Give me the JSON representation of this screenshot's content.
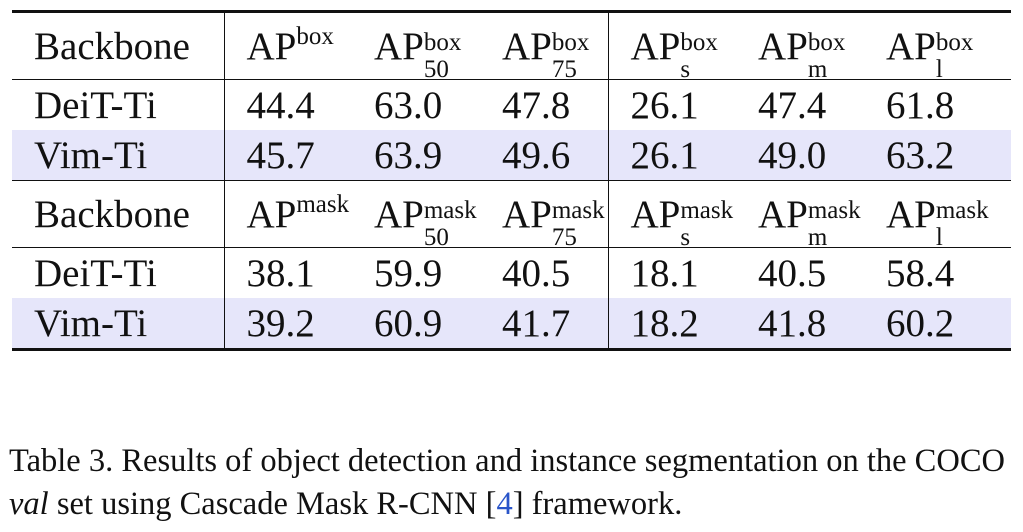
{
  "tables": [
    {
      "header": {
        "col0": "Backbone",
        "cols": [
          {
            "base": "AP",
            "sup": "box",
            "sub": ""
          },
          {
            "base": "AP",
            "sup": "box",
            "sub": "50"
          },
          {
            "base": "AP",
            "sup": "box",
            "sub": "75"
          },
          {
            "base": "AP",
            "sup": "box",
            "sub": "s"
          },
          {
            "base": "AP",
            "sup": "box",
            "sub": "m"
          },
          {
            "base": "AP",
            "sup": "box",
            "sub": "l"
          }
        ]
      },
      "rows": [
        {
          "backbone": "DeiT-Ti",
          "values": [
            "44.4",
            "63.0",
            "47.8",
            "26.1",
            "47.4",
            "61.8"
          ],
          "highlight": false
        },
        {
          "backbone": "Vim-Ti",
          "values": [
            "45.7",
            "63.9",
            "49.6",
            "26.1",
            "49.0",
            "63.2"
          ],
          "highlight": true
        }
      ]
    },
    {
      "header": {
        "col0": "Backbone",
        "cols": [
          {
            "base": "AP",
            "sup": "mask",
            "sub": ""
          },
          {
            "base": "AP",
            "sup": "mask",
            "sub": "50"
          },
          {
            "base": "AP",
            "sup": "mask",
            "sub": "75"
          },
          {
            "base": "AP",
            "sup": "mask",
            "sub": "s"
          },
          {
            "base": "AP",
            "sup": "mask",
            "sub": "m"
          },
          {
            "base": "AP",
            "sup": "mask",
            "sub": "l"
          }
        ]
      },
      "rows": [
        {
          "backbone": "DeiT-Ti",
          "values": [
            "38.1",
            "59.9",
            "40.5",
            "18.1",
            "40.5",
            "58.4"
          ],
          "highlight": false
        },
        {
          "backbone": "Vim-Ti",
          "values": [
            "39.2",
            "60.9",
            "41.7",
            "18.2",
            "41.8",
            "60.2"
          ],
          "highlight": true
        }
      ]
    }
  ],
  "caption": {
    "part1": "Table 3. Results of object detection and instance segmentation on the COCO ",
    "italic": "val",
    "part2": " set using Cascade Mask R-CNN [",
    "cite": "4",
    "part3": "] framework."
  }
}
